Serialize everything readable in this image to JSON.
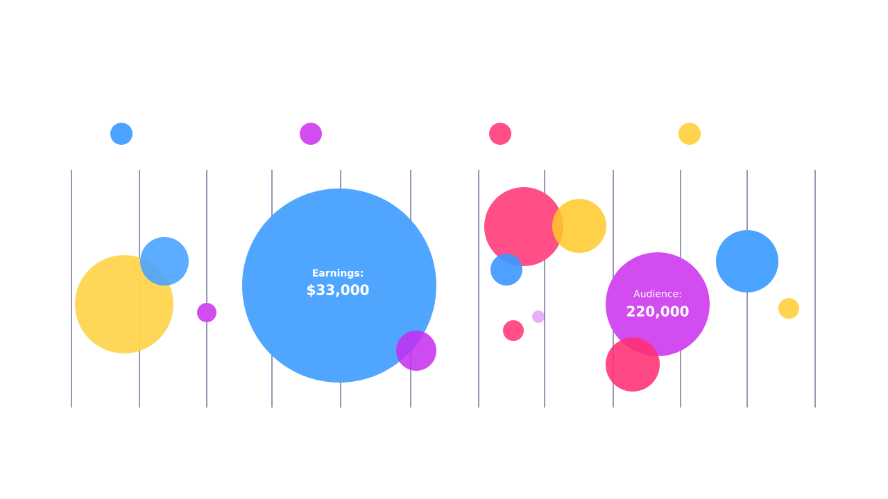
{
  "earnings": {
    "label": "Earnings:",
    "value": "$33,000"
  },
  "audience": {
    "label": "Audience:",
    "value": "220,000"
  }
}
